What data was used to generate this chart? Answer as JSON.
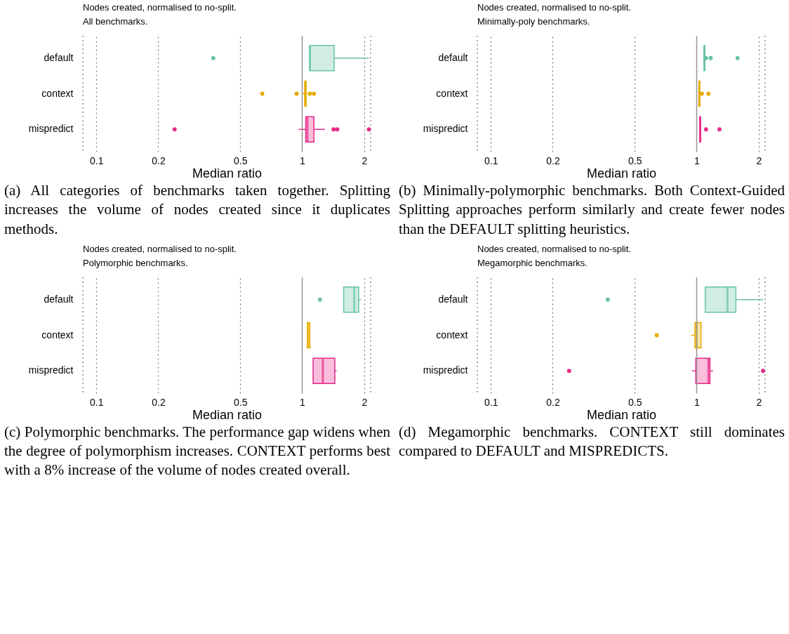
{
  "chart_data": [
    {
      "type": "box",
      "orientation": "horizontal",
      "title": "Nodes created, normalised to no-split.",
      "subtitle": "All benchmarks.",
      "xlabel": "Median ratio",
      "categories": [
        "default",
        "context",
        "mispredict"
      ],
      "colors": [
        "#66c2a5",
        "#e6ab02",
        "#e7298a"
      ],
      "log": "x",
      "xlim": [
        0.086,
        2.15
      ],
      "xticks": [
        0.1,
        0.2,
        0.5,
        1,
        2
      ],
      "grid": "x",
      "ref_lines": [
        {
          "axis": "x",
          "value": 1,
          "color": "#999999"
        }
      ],
      "boxes": [
        {
          "low": 1.09,
          "q1": 1.09,
          "median": 1.09,
          "q3": 1.43,
          "high": 2.11,
          "outliers": [
            0.37
          ]
        },
        {
          "low": 1.0,
          "q1": 1.03,
          "median": 1.035,
          "q3": 1.045,
          "high": 1.06,
          "outliers": [
            0.64,
            0.94,
            1.09,
            1.14
          ]
        },
        {
          "low": 0.96,
          "q1": 1.04,
          "median": 1.06,
          "q3": 1.14,
          "high": 1.29,
          "outliers": [
            0.24,
            1.42,
            1.48,
            2.11
          ]
        }
      ],
      "annotations": [
        "(a) All categories of benchmarks taken together. Splitting increases the volume of nodes created since it duplicates methods."
      ]
    },
    {
      "type": "box",
      "orientation": "horizontal",
      "title": "Nodes created, normalised to no-split.",
      "subtitle": "Minimally-poly benchmarks.",
      "xlabel": "Median ratio",
      "categories": [
        "default",
        "context",
        "mispredict"
      ],
      "colors": [
        "#66c2a5",
        "#e6ab02",
        "#e7298a"
      ],
      "log": "x",
      "xlim": [
        0.086,
        2.15
      ],
      "xticks": [
        0.1,
        0.2,
        0.5,
        1,
        2
      ],
      "grid": "x",
      "ref_lines": [
        {
          "axis": "x",
          "value": 1,
          "color": "#999999"
        }
      ],
      "boxes": [
        {
          "low": 1.085,
          "q1": 1.085,
          "median": 1.09,
          "q3": 1.095,
          "high": 1.095,
          "outliers": [
            1.11,
            1.17,
            1.58
          ]
        },
        {
          "low": 1.025,
          "q1": 1.025,
          "median": 1.03,
          "q3": 1.035,
          "high": 1.035,
          "outliers": [
            1.06,
            1.14
          ]
        },
        {
          "low": 1.035,
          "q1": 1.035,
          "median": 1.04,
          "q3": 1.045,
          "high": 1.045,
          "outliers": [
            1.11,
            1.29
          ]
        }
      ],
      "annotations": [
        "(b) Minimally-polymorphic benchmarks. Both Context-Guided Splitting approaches perform similarly and create fewer nodes than the DEFAULT splitting heuristics."
      ]
    },
    {
      "type": "box",
      "orientation": "horizontal",
      "title": "Nodes created, normalised to no-split.",
      "subtitle": "Polymorphic benchmarks.",
      "xlabel": "Median ratio",
      "categories": [
        "default",
        "context",
        "mispredict"
      ],
      "colors": [
        "#66c2a5",
        "#e6ab02",
        "#e7298a"
      ],
      "log": "x",
      "xlim": [
        0.086,
        2.15
      ],
      "xticks": [
        0.1,
        0.2,
        0.5,
        1,
        2
      ],
      "grid": "x",
      "ref_lines": [
        {
          "axis": "x",
          "value": 1,
          "color": "#999999"
        }
      ],
      "boxes": [
        {
          "low": 1.59,
          "q1": 1.59,
          "median": 1.79,
          "q3": 1.88,
          "high": 1.93,
          "outliers": [
            1.22
          ]
        },
        {
          "low": 1.06,
          "q1": 1.06,
          "median": 1.07,
          "q3": 1.09,
          "high": 1.09
        },
        {
          "low": 1.13,
          "q1": 1.13,
          "median": 1.26,
          "q3": 1.44,
          "high": 1.47
        }
      ],
      "annotations": [
        "(c) Polymorphic benchmarks. The performance gap widens when the degree of polymorphism increases. CONTEXT performs best with a 8% increase of the volume of nodes created overall."
      ]
    },
    {
      "type": "box",
      "orientation": "horizontal",
      "title": "Nodes created, normalised to no-split.",
      "subtitle": "Megamorphic benchmarks.",
      "xlabel": "Median ratio",
      "categories": [
        "default",
        "context",
        "mispredict"
      ],
      "colors": [
        "#66c2a5",
        "#e6ab02",
        "#e7298a"
      ],
      "log": "x",
      "xlim": [
        0.086,
        2.15
      ],
      "xticks": [
        0.1,
        0.2,
        0.5,
        1,
        2
      ],
      "grid": "x",
      "ref_lines": [
        {
          "axis": "x",
          "value": 1,
          "color": "#999999"
        }
      ],
      "boxes": [
        {
          "low": 1.1,
          "q1": 1.1,
          "median": 1.41,
          "q3": 1.55,
          "high": 2.1,
          "outliers": [
            0.37
          ]
        },
        {
          "low": 0.94,
          "q1": 0.98,
          "median": 1.0,
          "q3": 1.05,
          "high": 1.05,
          "outliers": [
            0.64
          ]
        },
        {
          "low": 0.95,
          "q1": 0.99,
          "median": 1.14,
          "q3": 1.16,
          "high": 1.2,
          "outliers": [
            0.24,
            2.1
          ]
        }
      ],
      "annotations": [
        "(d) Megamorphic benchmarks. CONTEXT still dominates compared to DEFAULT and MISPREDICTS."
      ]
    }
  ]
}
